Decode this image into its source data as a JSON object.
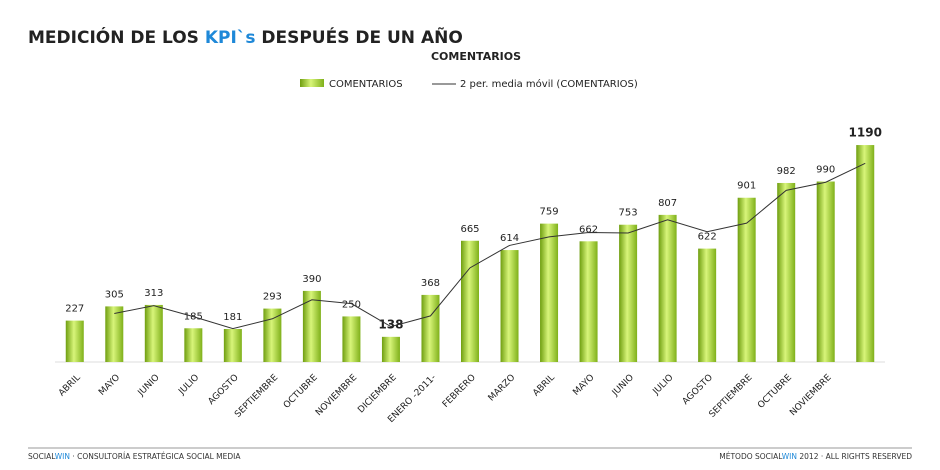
{
  "header": {
    "title": [
      "MEDICIÓN DE LOS ",
      "KPI`s",
      " DESPUÉS DE UN AÑO"
    ]
  },
  "chart_data": {
    "type": "bar",
    "title": "COMENTARIOS",
    "categories": [
      "ABRIL",
      "MAYO",
      "JUNIO",
      "JULIO",
      "AGOSTO",
      "SEPTIEMBRE",
      "OCTUBRE",
      "NOVIEMBRE",
      "DICIEMBRE",
      "ENERO -2011-",
      "FEBRERO",
      "MARZO",
      "ABRIL",
      "MAYO",
      "JUNIO",
      "JULIO",
      "AGOSTO",
      "SEPTIEMBRE",
      "OCTUBRE",
      "NOVIEMBRE",
      null
    ],
    "series": [
      {
        "name": "COMENTARIOS",
        "color": "#9acd32",
        "values": [
          227,
          305,
          313,
          185,
          181,
          293,
          390,
          250,
          138,
          368,
          665,
          614,
          759,
          662,
          753,
          807,
          622,
          901,
          982,
          990,
          1190
        ]
      },
      {
        "name": "2 per. media móvil (COMENTARIOS)",
        "color": "#333333",
        "type": "line",
        "values": [
          null,
          266,
          309,
          249,
          183,
          237,
          341.5,
          320,
          194,
          253,
          516.5,
          639.5,
          686.5,
          710.5,
          707.5,
          780,
          714.5,
          761.5,
          941.5,
          986,
          1090
        ]
      }
    ],
    "highlight": [
      8,
      20
    ],
    "ylim": [
      0,
      1300
    ],
    "legend": "top"
  },
  "footer": {
    "left": [
      "SOCIAL",
      "WIN",
      " · CONSULTORÍA ESTRATÉGICA SOCIAL MEDIA"
    ],
    "right": [
      "MÉTODO SOCIAL",
      "WIN",
      " 2012 · ALL RIGHTS RESERVED"
    ]
  }
}
